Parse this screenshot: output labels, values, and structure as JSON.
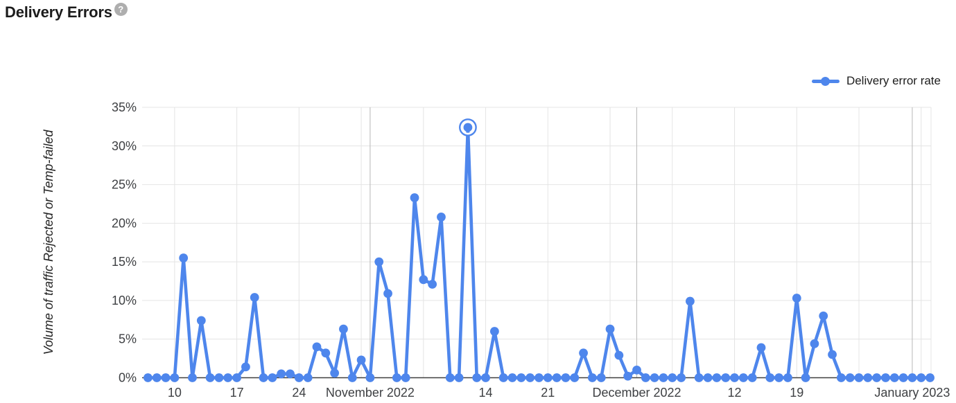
{
  "header": {
    "title": "Delivery Errors",
    "help_glyph": "?"
  },
  "legend": {
    "label": "Delivery error rate",
    "color": "#4e86ec"
  },
  "chart_data": {
    "type": "line",
    "title": "Delivery Errors",
    "y_axis_title": "Volume of traffic Rejected or Temp-failed",
    "x_axis_label": "",
    "ylim": [
      0,
      35
    ],
    "yticks": [
      0,
      5,
      10,
      15,
      20,
      25,
      30,
      35
    ],
    "ytick_suffix": "%",
    "grid": true,
    "legend_position": "top-right",
    "highlight": {
      "date": "2022-11-12",
      "value": 32.4,
      "style": "ringed-selected-point"
    },
    "x_ticks": [
      {
        "date": "2022-10-10",
        "label": "10"
      },
      {
        "date": "2022-10-17",
        "label": "17"
      },
      {
        "date": "2022-10-24",
        "label": "24"
      },
      {
        "date": "2022-10-31",
        "label": ""
      },
      {
        "date": "2022-11-01",
        "label": "November 2022",
        "month_boundary": true
      },
      {
        "date": "2022-11-07",
        "label": ""
      },
      {
        "date": "2022-11-14",
        "label": "14"
      },
      {
        "date": "2022-11-21",
        "label": "21"
      },
      {
        "date": "2022-11-28",
        "label": ""
      },
      {
        "date": "2022-12-01",
        "label": "December 2022",
        "month_boundary": true
      },
      {
        "date": "2022-12-05",
        "label": ""
      },
      {
        "date": "2022-12-12",
        "label": "12"
      },
      {
        "date": "2022-12-19",
        "label": "19"
      },
      {
        "date": "2022-12-26",
        "label": ""
      },
      {
        "date": "2023-01-01",
        "label": "January 2023",
        "month_boundary": true
      },
      {
        "date": "2023-01-02",
        "label": ""
      }
    ],
    "series": [
      {
        "name": "Delivery error rate",
        "color": "#4e86ec",
        "dates": [
          "2022-10-07",
          "2022-10-08",
          "2022-10-09",
          "2022-10-10",
          "2022-10-11",
          "2022-10-12",
          "2022-10-13",
          "2022-10-14",
          "2022-10-15",
          "2022-10-16",
          "2022-10-17",
          "2022-10-18",
          "2022-10-19",
          "2022-10-20",
          "2022-10-21",
          "2022-10-22",
          "2022-10-23",
          "2022-10-24",
          "2022-10-25",
          "2022-10-26",
          "2022-10-27",
          "2022-10-28",
          "2022-10-29",
          "2022-10-30",
          "2022-10-31",
          "2022-11-01",
          "2022-11-02",
          "2022-11-03",
          "2022-11-04",
          "2022-11-05",
          "2022-11-06",
          "2022-11-07",
          "2022-11-08",
          "2022-11-09",
          "2022-11-10",
          "2022-11-11",
          "2022-11-12",
          "2022-11-13",
          "2022-11-14",
          "2022-11-15",
          "2022-11-16",
          "2022-11-17",
          "2022-11-18",
          "2022-11-19",
          "2022-11-20",
          "2022-11-21",
          "2022-11-22",
          "2022-11-23",
          "2022-11-24",
          "2022-11-25",
          "2022-11-26",
          "2022-11-27",
          "2022-11-28",
          "2022-11-29",
          "2022-11-30",
          "2022-12-01",
          "2022-12-02",
          "2022-12-03",
          "2022-12-04",
          "2022-12-05",
          "2022-12-06",
          "2022-12-07",
          "2022-12-08",
          "2022-12-09",
          "2022-12-10",
          "2022-12-11",
          "2022-12-12",
          "2022-12-13",
          "2022-12-14",
          "2022-12-15",
          "2022-12-16",
          "2022-12-17",
          "2022-12-18",
          "2022-12-19",
          "2022-12-20",
          "2022-12-21",
          "2022-12-22",
          "2022-12-23",
          "2022-12-24",
          "2022-12-25",
          "2022-12-26",
          "2022-12-27",
          "2022-12-28",
          "2022-12-29",
          "2022-12-30",
          "2022-12-31",
          "2023-01-01",
          "2023-01-02",
          "2023-01-03"
        ],
        "values": [
          0,
          0,
          0,
          0,
          15.5,
          0,
          7.4,
          0,
          0,
          0,
          0,
          1.4,
          10.4,
          0,
          0,
          0.5,
          0.5,
          0,
          0,
          4.0,
          3.2,
          0.6,
          6.3,
          0,
          2.3,
          0,
          15.0,
          10.9,
          0,
          0,
          23.3,
          12.7,
          12.1,
          20.8,
          0,
          0,
          32.4,
          0,
          0,
          6.0,
          0,
          0,
          0,
          0,
          0,
          0,
          0,
          0,
          0,
          3.2,
          0,
          0,
          6.3,
          2.9,
          0.2,
          1.0,
          0,
          0,
          0,
          0,
          0,
          9.9,
          0,
          0,
          0,
          0,
          0,
          0,
          0,
          3.9,
          0,
          0,
          0,
          10.3,
          0,
          4.4,
          8.0,
          3.0,
          0,
          0,
          0,
          0,
          0,
          0,
          0,
          0,
          0,
          0,
          0
        ]
      }
    ]
  }
}
